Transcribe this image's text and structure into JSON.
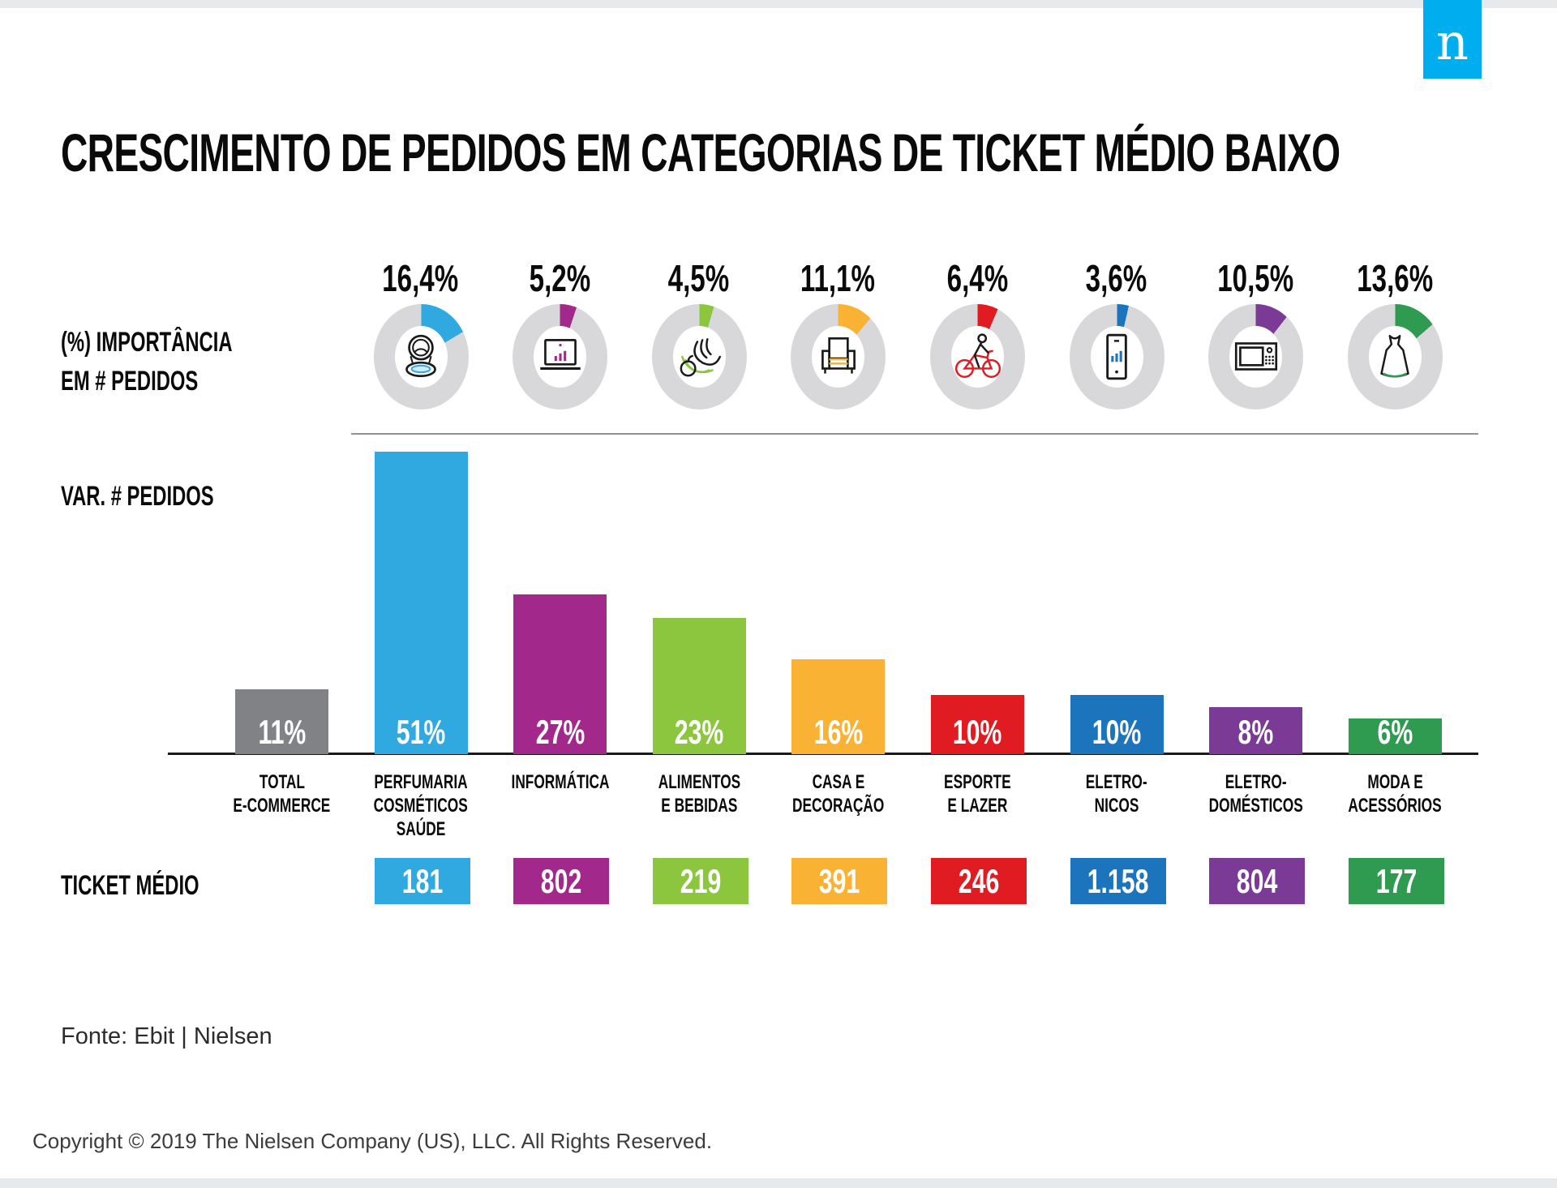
{
  "logo": {
    "letter": "n",
    "color": "#00AEEF"
  },
  "row_labels": {
    "importance_line1": "(%) IMPORTÂNCIA",
    "importance_line2": "EM # PEDIDOS",
    "var_pedidos": "VAR. # PEDIDOS",
    "ticket_medio": "TICKET MÉDIO"
  },
  "footer": {
    "source": "Fonte: Ebit | Nielsen",
    "copyright": "Copyright © 2019 The Nielsen Company (US), LLC. All Rights Reserved."
  },
  "chart_data": {
    "type": "bar",
    "title": "CRESCIMENTO DE PEDIDOS EM CATEGORIAS DE TICKET MÉDIO BAIXO",
    "legend_rows": [
      "(%) IMPORTÂNCIA EM # PEDIDOS",
      "VAR. # PEDIDOS",
      "TICKET MÉDIO"
    ],
    "ring_background_color": "#D8D8DA",
    "columns": [
      {
        "label_lines": [
          "TOTAL",
          "E-COMMERCE"
        ],
        "importance_label": null,
        "importance_value": null,
        "var_label": "11%",
        "var_value": 11,
        "ticket_label": null,
        "color": "#808285",
        "icon": null
      },
      {
        "label_lines": [
          "PERFUMARIA",
          "COSMÉTICOS",
          "SAÚDE"
        ],
        "importance_label": "16,4%",
        "importance_value": 16.4,
        "var_label": "51%",
        "var_value": 51,
        "ticket_label": "181",
        "color": "#2FA9E0",
        "icon": "cosmetics-compact-icon"
      },
      {
        "label_lines": [
          "INFORMÁTICA"
        ],
        "importance_label": "5,2%",
        "importance_value": 5.2,
        "var_label": "27%",
        "var_value": 27,
        "ticket_label": "802",
        "color": "#A3288C",
        "icon": "laptop-icon"
      },
      {
        "label_lines": [
          "ALIMENTOS",
          "E BEBIDAS"
        ],
        "importance_label": "4,5%",
        "importance_value": 4.5,
        "var_label": "23%",
        "var_value": 23,
        "ticket_label": "219",
        "color": "#8CC63F",
        "icon": "fruits-icon"
      },
      {
        "label_lines": [
          "CASA E",
          "DECORAÇÃO"
        ],
        "importance_label": "11,1%",
        "importance_value": 11.1,
        "var_label": "16%",
        "var_value": 16,
        "ticket_label": "391",
        "color": "#F9B233",
        "icon": "sofa-icon"
      },
      {
        "label_lines": [
          "ESPORTE",
          "E LAZER"
        ],
        "importance_label": "6,4%",
        "importance_value": 6.4,
        "var_label": "10%",
        "var_value": 10,
        "ticket_label": "246",
        "color": "#E11B22",
        "icon": "bicycle-icon"
      },
      {
        "label_lines": [
          "ELETRO-",
          "NICOS"
        ],
        "importance_label": "3,6%",
        "importance_value": 3.6,
        "var_label": "10%",
        "var_value": 10,
        "ticket_label": "1.158",
        "color": "#1C75BC",
        "icon": "smartphone-icon"
      },
      {
        "label_lines": [
          "ELETRO-",
          "DOMÉSTICOS"
        ],
        "importance_label": "10,5%",
        "importance_value": 10.5,
        "var_label": "8%",
        "var_value": 8,
        "ticket_label": "804",
        "color": "#7A3A96",
        "icon": "microwave-icon"
      },
      {
        "label_lines": [
          "MODA E",
          "ACESSÓRIOS"
        ],
        "importance_label": "13,6%",
        "importance_value": 13.6,
        "var_label": "6%",
        "var_value": 6,
        "ticket_label": "177",
        "color": "#2E9B50",
        "icon": "dress-icon"
      }
    ]
  }
}
